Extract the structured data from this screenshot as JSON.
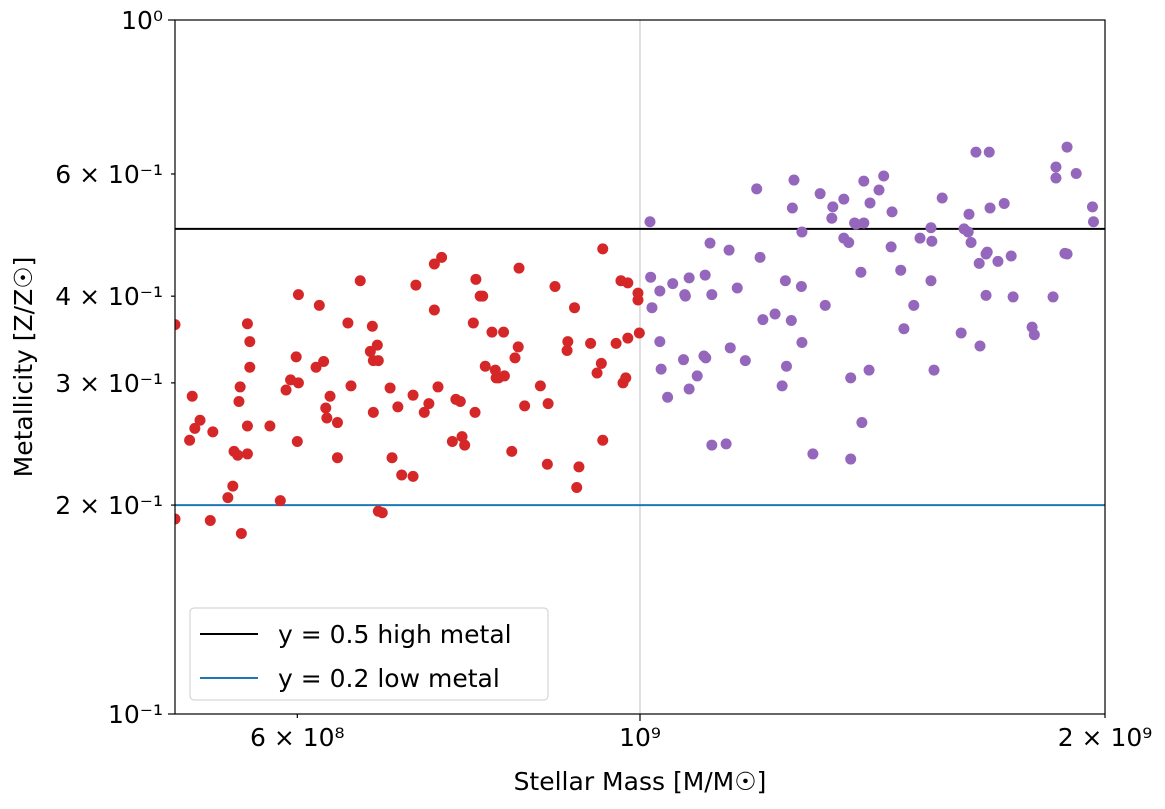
{
  "chart_data": {
    "type": "scatter",
    "xlabel": "Stellar Mass [M/M☉]",
    "ylabel": "Metallicity [Z/Z☉]",
    "xscale": "log",
    "yscale": "log",
    "xlim": [
      500000000.0,
      2000000000.0
    ],
    "ylim": [
      0.1,
      1
    ],
    "xticks": [
      {
        "value": 600000000.0,
        "label": "6 × 10⁸"
      },
      {
        "value": 1000000000.0,
        "label": "10⁹"
      },
      {
        "value": 2000000000.0,
        "label": "2 × 10⁹"
      }
    ],
    "yticks": [
      {
        "value": 1,
        "label": "10⁰"
      },
      {
        "value": 0.6,
        "label": "6 × 10⁻¹"
      },
      {
        "value": 0.4,
        "label": "4 × 10⁻¹"
      },
      {
        "value": 0.3,
        "label": "3 × 10⁻¹"
      },
      {
        "value": 0.2,
        "label": "2 × 10⁻¹"
      },
      {
        "value": 0.1,
        "label": "10⁻¹"
      }
    ],
    "grid": {
      "axis": "x",
      "which": "major"
    },
    "legend": "lower left",
    "hlines": [
      {
        "name": "y = 0.5 high metal",
        "color": "#000000",
        "y": 0.5
      },
      {
        "name": "y = 0.2 low metal",
        "color": "#1f77b4",
        "y": 0.2
      }
    ],
    "series": [
      {
        "color": "#d62728",
        "x": [
          500000000.0,
          500000000.0,
          511000000.0,
          513000000.0,
          515000000.0,
          519000000.0,
          527000000.0,
          529000000.0,
          541000000.0,
          545000000.0,
          546000000.0,
          549000000.0,
          550000000.0,
          551000000.0,
          552000000.0,
          557000000.0,
          557000000.0,
          557000000.0,
          559000000.0,
          559000000.0,
          576000000.0,
          585000000.0,
          590000000.0,
          594000000.0,
          599000000.0,
          600000000.0,
          601000000.0,
          601000000.0,
          617000000.0,
          620000000.0,
          624000000.0,
          626000000.0,
          627000000.0,
          630000000.0,
          637000000.0,
          637000000.0,
          647000000.0,
          650000000.0,
          659000000.0,
          669000000.0,
          671000000.0,
          672000000.0,
          672000000.0,
          676000000.0,
          677000000.0,
          677000000.0,
          681000000.0,
          689000000.0,
          691000000.0,
          697000000.0,
          701000000.0,
          713000000.0,
          713000000.0,
          716000000.0,
          725000000.0,
          730000000.0,
          736000000.0,
          736000000.0,
          740000000.0,
          744000000.0,
          756000000.0,
          760000000.0,
          765000000.0,
          767000000.0,
          770000000.0,
          780000000.0,
          782000000.0,
          783000000.0,
          788000000.0,
          791000000.0,
          794000000.0,
          802000000.0,
          806000000.0,
          807000000.0,
          810000000.0,
          816000000.0,
          817000000.0,
          826000000.0,
          830000000.0,
          834000000.0,
          835000000.0,
          842000000.0,
          862000000.0,
          871000000.0,
          872000000.0,
          881000000.0,
          897000000.0,
          898000000.0,
          907000000.0,
          910000000.0,
          913000000.0,
          929000000.0,
          938000000.0,
          944000000.0,
          946000000.0,
          946000000.0,
          965000000.0,
          972000000.0,
          975000000.0,
          979000000.0,
          982000000.0,
          982000000.0,
          997000000.0,
          997000000.0,
          999000000.0
        ],
        "values": [
          0.364,
          0.191,
          0.248,
          0.287,
          0.258,
          0.265,
          0.19,
          0.255,
          0.205,
          0.213,
          0.239,
          0.236,
          0.282,
          0.296,
          0.182,
          0.26,
          0.365,
          0.237,
          0.344,
          0.316,
          0.26,
          0.203,
          0.293,
          0.303,
          0.327,
          0.247,
          0.3,
          0.402,
          0.316,
          0.388,
          0.322,
          0.276,
          0.267,
          0.287,
          0.263,
          0.234,
          0.366,
          0.297,
          0.421,
          0.333,
          0.362,
          0.272,
          0.323,
          0.34,
          0.323,
          0.196,
          0.195,
          0.295,
          0.234,
          0.277,
          0.221,
          0.22,
          0.288,
          0.415,
          0.272,
          0.28,
          0.445,
          0.382,
          0.296,
          0.455,
          0.247,
          0.284,
          0.282,
          0.251,
          0.244,
          0.366,
          0.272,
          0.423,
          0.4,
          0.4,
          0.317,
          0.355,
          0.313,
          0.305,
          0.305,
          0.355,
          0.307,
          0.239,
          0.326,
          0.338,
          0.439,
          0.278,
          0.297,
          0.229,
          0.28,
          0.413,
          0.334,
          0.344,
          0.385,
          0.212,
          0.227,
          0.342,
          0.31,
          0.32,
          0.468,
          0.248,
          0.342,
          0.421,
          0.3,
          0.305,
          0.418,
          0.348,
          0.404,
          0.395,
          0.354
        ]
      },
      {
        "color": "#9467bd",
        "x": [
          1015000000.0,
          1016000000.0,
          1018000000.0,
          1030000000.0,
          1030000000.0,
          1032000000.0,
          1042000000.0,
          1050000000.0,
          1067000000.0,
          1069000000.0,
          1070000000.0,
          1076000000.0,
          1076000000.0,
          1089000000.0,
          1100000000.0,
          1102000000.0,
          1103000000.0,
          1110000000.0,
          1113000000.0,
          1113000000.0,
          1137000000.0,
          1142000000.0,
          1144000000.0,
          1156000000.0,
          1170000000.0,
          1190000000.0,
          1196000000.0,
          1201000000.0,
          1223000000.0,
          1236000000.0,
          1242000000.0,
          1244000000.0,
          1253000000.0,
          1255000000.0,
          1258000000.0,
          1272000000.0,
          1273000000.0,
          1273000000.0,
          1294000000.0,
          1308000000.0,
          1318000000.0,
          1331000000.0,
          1333000000.0,
          1355000000.0,
          1355000000.0,
          1365000000.0,
          1369000000.0,
          1369000000.0,
          1377000000.0,
          1380000000.0,
          1390000000.0,
          1392000000.0,
          1396000000.0,
          1396000000.0,
          1407000000.0,
          1409000000.0,
          1428000000.0,
          1438000000.0,
          1454000000.0,
          1456000000.0,
          1475000000.0,
          1482000000.0,
          1504000000.0,
          1518000000.0,
          1543000000.0,
          1545000000.0,
          1543000000.0,
          1550000000.0,
          1569000000.0,
          1614000000.0,
          1621000000.0,
          1631000000.0,
          1633000000.0,
          1638000000.0,
          1650000000.0,
          1658000000.0,
          1660000000.0,
          1675000000.0,
          1675000000.0,
          1678000000.0,
          1683000000.0,
          1685000000.0,
          1705000000.0,
          1721000000.0,
          1739000000.0,
          1744000000.0,
          1794000000.0,
          1800000000.0,
          1851000000.0,
          1859000000.0,
          1859000000.0,
          1884000000.0,
          1890000000.0,
          1890000000.0,
          1916000000.0,
          1963000000.0,
          1966000000.0
        ],
        "values": [
          0.512,
          0.426,
          0.385,
          0.344,
          0.407,
          0.314,
          0.286,
          0.417,
          0.324,
          0.402,
          0.4,
          0.425,
          0.294,
          0.307,
          0.328,
          0.429,
          0.326,
          0.477,
          0.244,
          0.402,
          0.245,
          0.466,
          0.337,
          0.411,
          0.323,
          0.571,
          0.455,
          0.37,
          0.377,
          0.297,
          0.421,
          0.317,
          0.369,
          0.536,
          0.588,
          0.413,
          0.495,
          0.343,
          0.237,
          0.562,
          0.388,
          0.518,
          0.538,
          0.552,
          0.485,
          0.478,
          0.305,
          0.233,
          0.51,
          0.508,
          0.433,
          0.263,
          0.51,
          0.586,
          0.313,
          0.545,
          0.569,
          0.596,
          0.471,
          0.529,
          0.436,
          0.359,
          0.388,
          0.485,
          0.502,
          0.48,
          0.421,
          0.313,
          0.554,
          0.354,
          0.5,
          0.495,
          0.525,
          0.478,
          0.645,
          0.446,
          0.339,
          0.46,
          0.401,
          0.463,
          0.645,
          0.536,
          0.449,
          0.544,
          0.457,
          0.399,
          0.361,
          0.352,
          0.399,
          0.614,
          0.592,
          0.461,
          0.656,
          0.46,
          0.601,
          0.538,
          0.512
        ]
      }
    ]
  }
}
